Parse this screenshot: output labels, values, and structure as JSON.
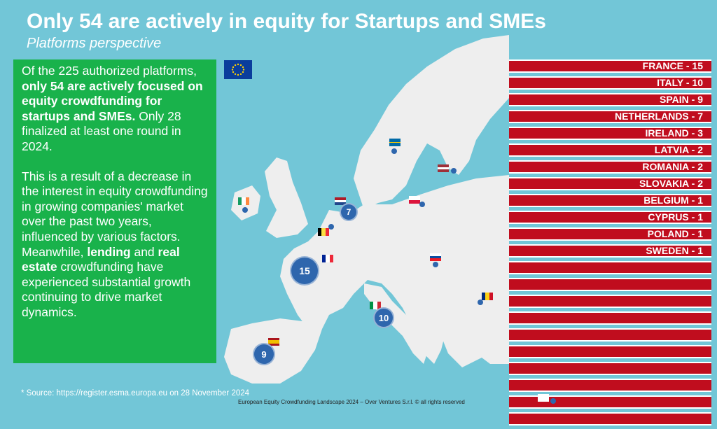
{
  "title": "Only 54 are actively in equity for Startups and SMEs",
  "subtitle": "Platforms perspective",
  "panel": {
    "p1_a": "Of the 225 authorized platforms, ",
    "p1_b": "only 54 are actively focused on equity crowdfunding for startups and SMEs.",
    "p1_c": " Only 28 finalized at least one round in 2024.",
    "p2_a": "This is a result of a decrease in the interest in equity crowdfunding in growing companies' market over the past two years, influenced by various factors. Meanwhile, ",
    "p2_b": "lending",
    "p2_c": " and ",
    "p2_d": "real estate",
    "p2_e": " crowdfunding have experienced substantial growth continuing to drive market dynamics."
  },
  "ranking": [
    "FRANCE - 15",
    "ITALY - 10",
    "SPAIN - 9",
    "NETHERLANDS - 7",
    "IRELAND - 3",
    "LATVIA - 2",
    "ROMANIA - 2",
    "SLOVAKIA - 2",
    "BELGIUM - 1",
    "CYPRUS - 1",
    "POLAND - 1",
    "SWEDEN - 1",
    "",
    "",
    "",
    "",
    "",
    "",
    "",
    "",
    "",
    ""
  ],
  "bubbles": {
    "france": "15",
    "italy": "10",
    "spain": "9",
    "netherlands": "7"
  },
  "source": "* Source: https://register.esma.europa.eu on 28 November 2024",
  "footer": "European Equity Crowdfunding Landscape 2024 – Over Ventures S.r.l. © all rights reserved",
  "colors": {
    "sea": "#72c6d7",
    "land": "#eeeeee",
    "panel": "#19b24b",
    "bar": "#c00d1e",
    "bubble": "#2e66ad"
  }
}
